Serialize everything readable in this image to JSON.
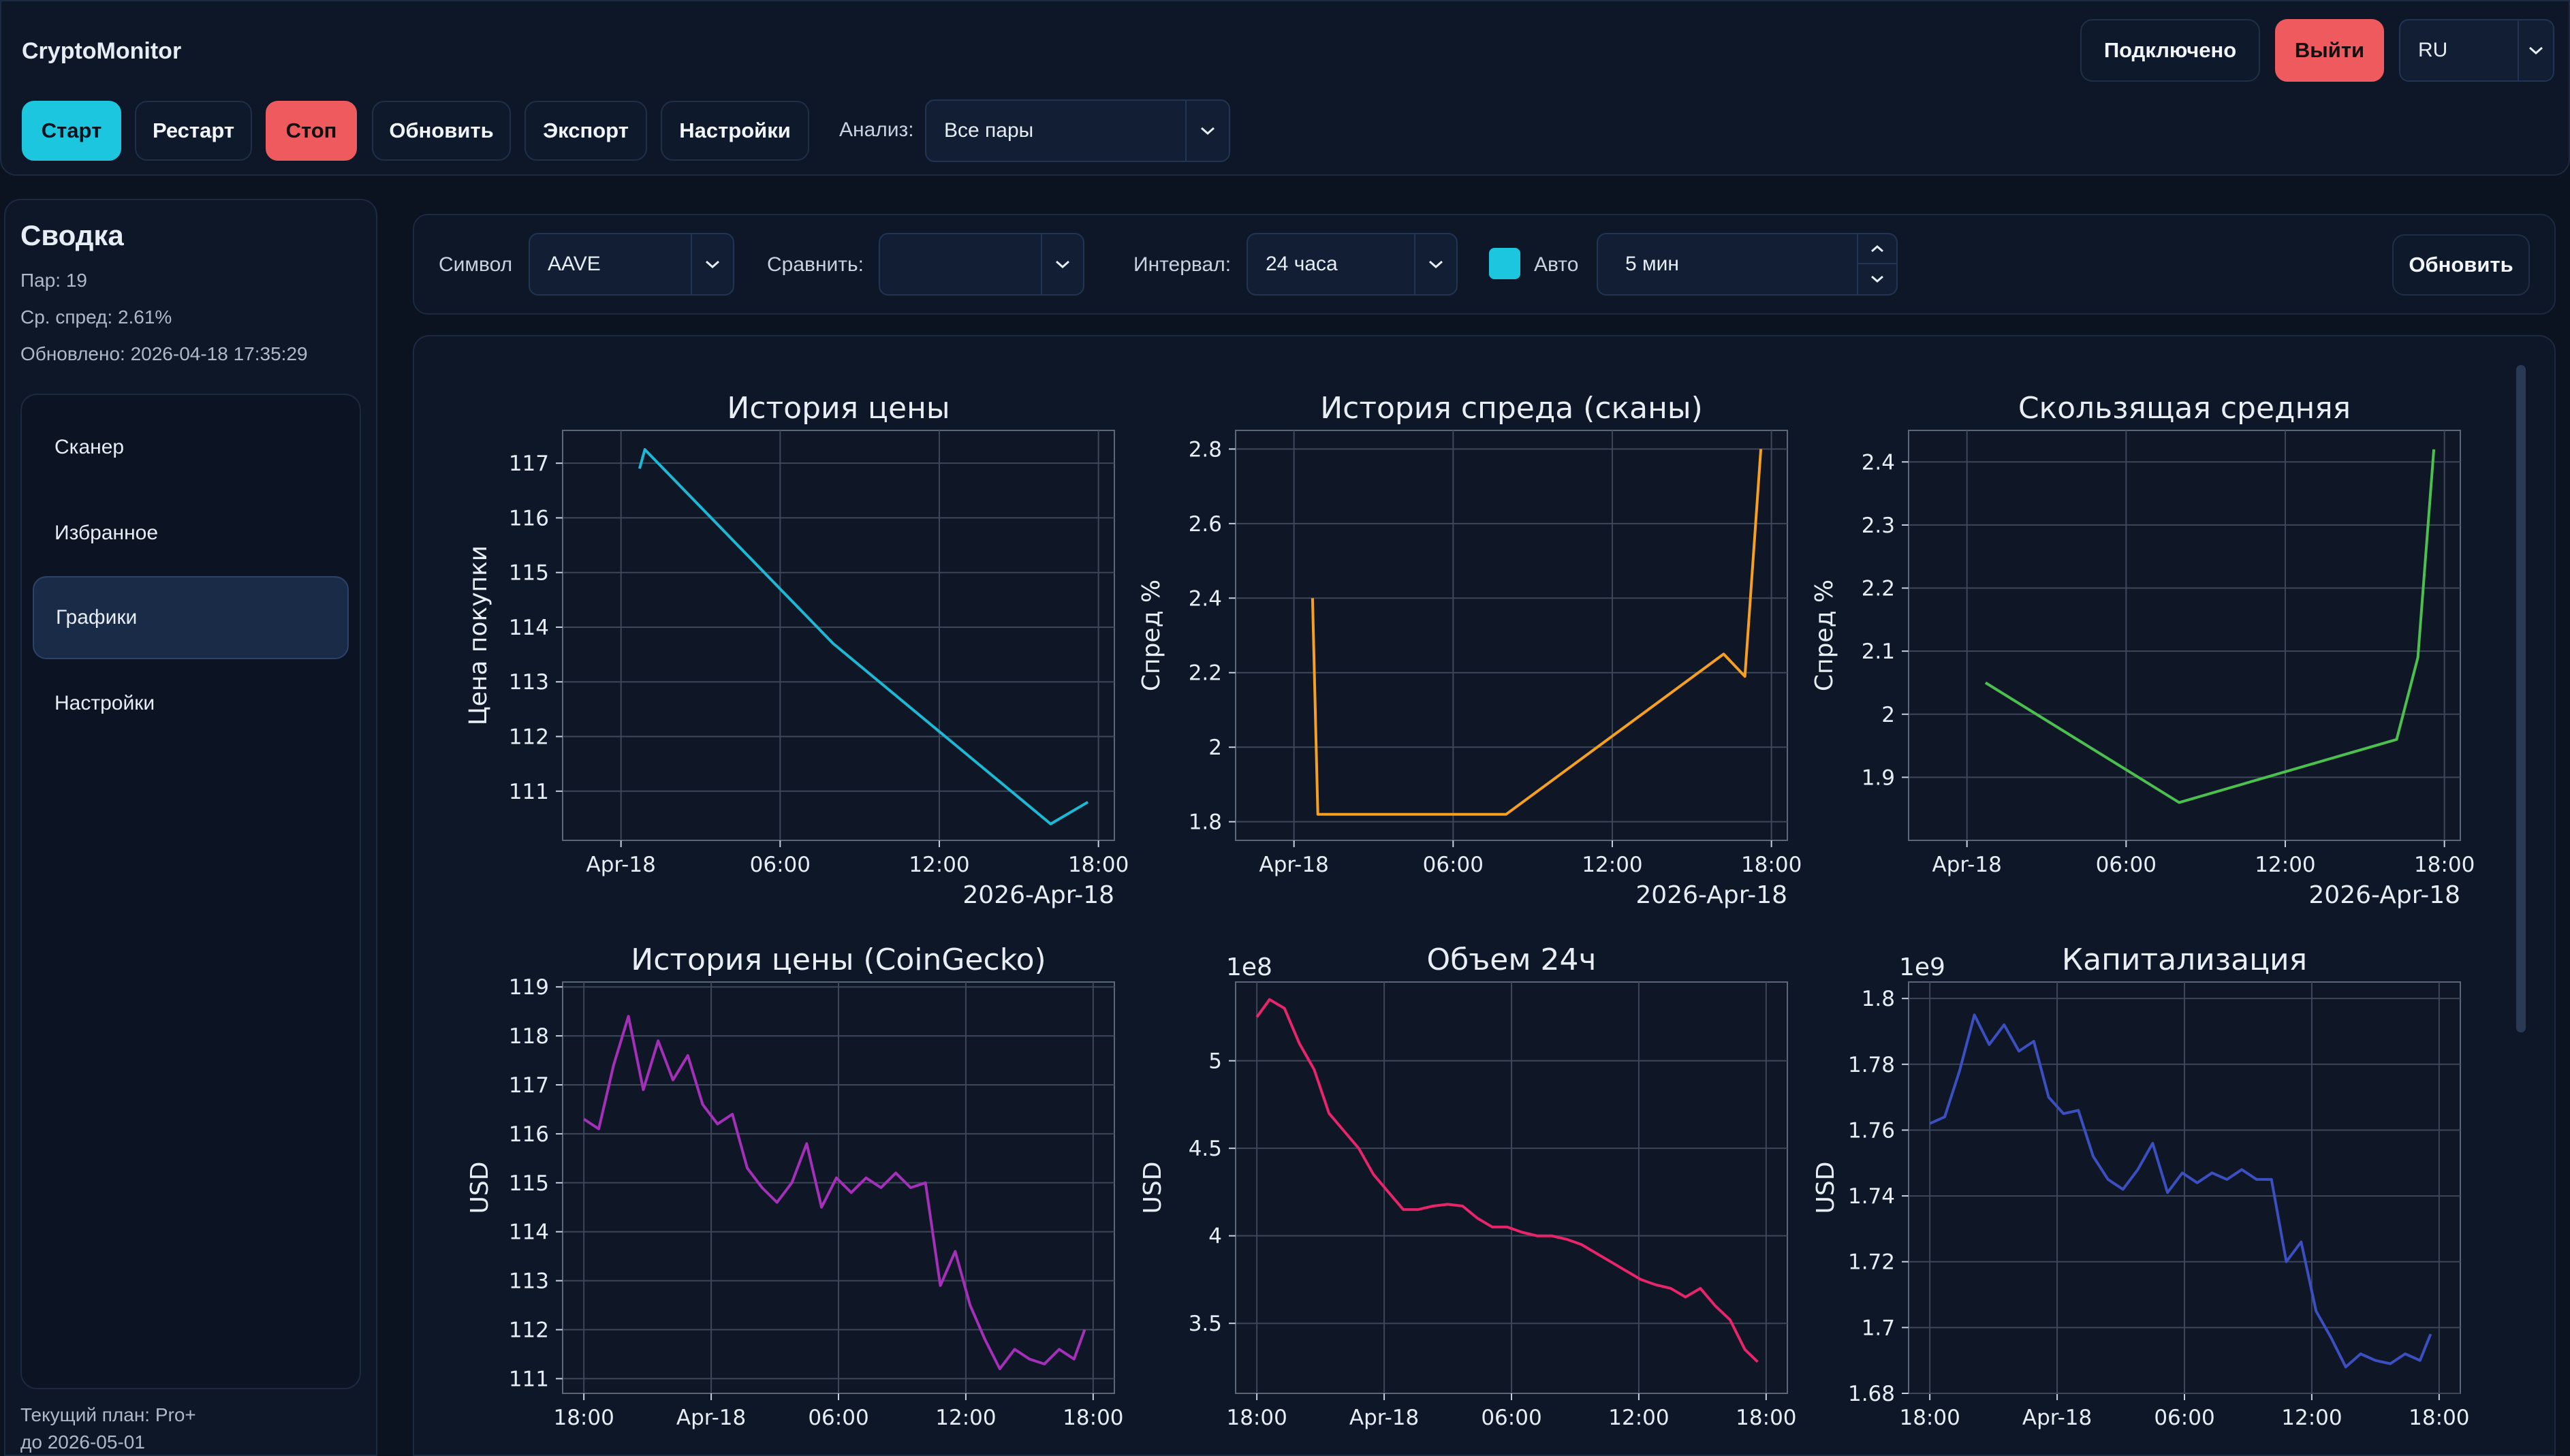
{
  "app": {
    "title": "CryptoMonitor"
  },
  "header": {
    "status": "Подключено",
    "logout": "Выйти",
    "lang": "RU"
  },
  "toolbar": {
    "start": "Старт",
    "restart": "Рестарт",
    "stop": "Стоп",
    "refresh": "Обновить",
    "export": "Экспорт",
    "settings": "Настройки",
    "analysis_label": "Анализ:",
    "analysis_value": "Все пары"
  },
  "summary": {
    "title": "Сводка",
    "pairs": "Пар: 19",
    "avg_spread": "Ср. спред: 2.61%",
    "updated": "Обновлено: 2026-04-18 17:35:29"
  },
  "nav": {
    "items": [
      {
        "label": "Сканер",
        "active": false
      },
      {
        "label": "Избранное",
        "active": false
      },
      {
        "label": "Графики",
        "active": true
      },
      {
        "label": "Настройки",
        "active": false
      }
    ]
  },
  "plan": {
    "line1": "Текущий план: Pro+",
    "line2": "до 2026-05-01"
  },
  "filters": {
    "symbol_label": "Символ",
    "symbol_value": "AAVE",
    "compare_label": "Сравнить:",
    "compare_value": "",
    "interval_label": "Интервал:",
    "interval_value": "24 часа",
    "auto_label": "Авто",
    "auto_checked": true,
    "period_value": "5 мин",
    "refresh": "Обновить"
  },
  "colors": {
    "accent": "#1cc6de",
    "danger": "#ee5a5e",
    "price": "#1cb8d4",
    "spread": "#f5a021",
    "ma": "#4cc04f",
    "cg_price": "#a42fb8",
    "volume": "#e8246a",
    "cap": "#3c4fc0"
  },
  "chart_data": [
    {
      "type": "line",
      "title": "История цены",
      "ylabel": "Цена покупки",
      "xlabel": "2026-Apr-18",
      "x_ticks": [
        "Apr-18",
        "06:00",
        "12:00",
        "18:00"
      ],
      "y_ticks": [
        111,
        112,
        113,
        114,
        115,
        116,
        117
      ],
      "ylim": [
        110.1,
        117.6
      ],
      "series": [
        {
          "x": [
            0.7,
            0.9,
            8.0,
            16.2,
            17.6
          ],
          "values": [
            116.9,
            117.25,
            113.7,
            110.4,
            110.8
          ]
        }
      ]
    },
    {
      "type": "line",
      "title": "История спреда (сканы)",
      "ylabel": "Спред %",
      "xlabel": "2026-Apr-18",
      "x_ticks": [
        "Apr-18",
        "06:00",
        "12:00",
        "18:00"
      ],
      "y_ticks": [
        1.8,
        2.0,
        2.2,
        2.4,
        2.6,
        2.8
      ],
      "ylim": [
        1.75,
        2.85
      ],
      "series": [
        {
          "x": [
            0.7,
            0.9,
            8.0,
            16.2,
            17.0,
            17.6
          ],
          "values": [
            2.4,
            1.82,
            1.82,
            2.25,
            2.19,
            2.8
          ]
        }
      ]
    },
    {
      "type": "line",
      "title": "Скользящая средняя",
      "ylabel": "Спред %",
      "xlabel": "2026-Apr-18",
      "x_ticks": [
        "Apr-18",
        "06:00",
        "12:00",
        "18:00"
      ],
      "y_ticks": [
        1.9,
        2.0,
        2.1,
        2.2,
        2.3,
        2.4
      ],
      "ylim": [
        1.8,
        2.45
      ],
      "series": [
        {
          "x": [
            0.7,
            8.0,
            16.2,
            17.0,
            17.6
          ],
          "values": [
            2.05,
            1.86,
            1.96,
            2.09,
            2.42
          ]
        }
      ]
    },
    {
      "type": "line",
      "title": "История цены (CoinGecko)",
      "ylabel": "USD",
      "x_ticks": [
        "18:00",
        "Apr-18",
        "06:00",
        "12:00",
        "18:00"
      ],
      "y_ticks": [
        111,
        112,
        113,
        114,
        115,
        116,
        117,
        118,
        119
      ],
      "ylim": [
        110.7,
        119.1
      ],
      "series": [
        {
          "x": [
            -6,
            -5.3,
            -4.6,
            -3.9,
            -3.2,
            -2.5,
            -1.8,
            -1.1,
            -0.4,
            0.3,
            1.0,
            1.7,
            2.4,
            3.1,
            3.8,
            4.5,
            5.2,
            5.9,
            6.6,
            7.3,
            8.0,
            8.7,
            9.4,
            10.1,
            10.8,
            11.5,
            12.2,
            12.9,
            13.6,
            14.3,
            15.0,
            15.7,
            16.4,
            17.1,
            17.6
          ],
          "values": [
            116.3,
            116.1,
            117.4,
            118.4,
            116.9,
            117.9,
            117.1,
            117.6,
            116.6,
            116.2,
            116.4,
            115.3,
            114.9,
            114.6,
            115.0,
            115.8,
            114.5,
            115.1,
            114.8,
            115.1,
            114.9,
            115.2,
            114.9,
            115.0,
            112.9,
            113.6,
            112.5,
            111.8,
            111.2,
            111.6,
            111.4,
            111.3,
            111.6,
            111.4,
            112.0
          ]
        }
      ]
    },
    {
      "type": "line",
      "title": "Объем 24ч",
      "ylabel": "USD",
      "y_offset_label": "1e8",
      "x_ticks": [
        "18:00",
        "Apr-18",
        "06:00",
        "12:00",
        "18:00"
      ],
      "y_ticks": [
        3.5,
        4.0,
        4.5,
        5.0
      ],
      "ylim": [
        3.1,
        5.45
      ],
      "series": [
        {
          "x": [
            -6,
            -5.4,
            -4.7,
            -4.0,
            -3.3,
            -2.6,
            -1.9,
            -1.2,
            -0.5,
            0.2,
            0.9,
            1.6,
            2.3,
            3.0,
            3.7,
            4.4,
            5.1,
            5.8,
            6.5,
            7.2,
            7.9,
            8.6,
            9.3,
            10.0,
            10.7,
            11.4,
            12.1,
            12.8,
            13.5,
            14.2,
            14.9,
            15.6,
            16.3,
            17.0,
            17.6
          ],
          "values": [
            5.25,
            5.35,
            5.3,
            5.1,
            4.95,
            4.7,
            4.6,
            4.5,
            4.35,
            4.25,
            4.15,
            4.15,
            4.17,
            4.18,
            4.17,
            4.1,
            4.05,
            4.05,
            4.02,
            4.0,
            4.0,
            3.98,
            3.95,
            3.9,
            3.85,
            3.8,
            3.75,
            3.72,
            3.7,
            3.65,
            3.7,
            3.6,
            3.52,
            3.35,
            3.28
          ]
        }
      ]
    },
    {
      "type": "line",
      "title": "Капитализация",
      "ylabel": "USD",
      "y_offset_label": "1e9",
      "x_ticks": [
        "18:00",
        "Apr-18",
        "06:00",
        "12:00",
        "18:00"
      ],
      "y_ticks": [
        1.68,
        1.7,
        1.72,
        1.74,
        1.76,
        1.78,
        1.8
      ],
      "ylim": [
        1.68,
        1.805
      ],
      "series": [
        {
          "x": [
            -6,
            -5.3,
            -4.6,
            -3.9,
            -3.2,
            -2.5,
            -1.8,
            -1.1,
            -0.4,
            0.3,
            1.0,
            1.7,
            2.4,
            3.1,
            3.8,
            4.5,
            5.2,
            5.9,
            6.6,
            7.3,
            8.0,
            8.7,
            9.4,
            10.1,
            10.8,
            11.5,
            12.2,
            12.9,
            13.6,
            14.3,
            15.0,
            15.7,
            16.4,
            17.1,
            17.6
          ],
          "values": [
            1.762,
            1.764,
            1.778,
            1.795,
            1.786,
            1.792,
            1.784,
            1.787,
            1.77,
            1.765,
            1.766,
            1.752,
            1.745,
            1.742,
            1.748,
            1.756,
            1.741,
            1.747,
            1.744,
            1.747,
            1.745,
            1.748,
            1.745,
            1.745,
            1.72,
            1.726,
            1.705,
            1.697,
            1.688,
            1.692,
            1.69,
            1.689,
            1.692,
            1.69,
            1.698
          ]
        }
      ]
    }
  ]
}
